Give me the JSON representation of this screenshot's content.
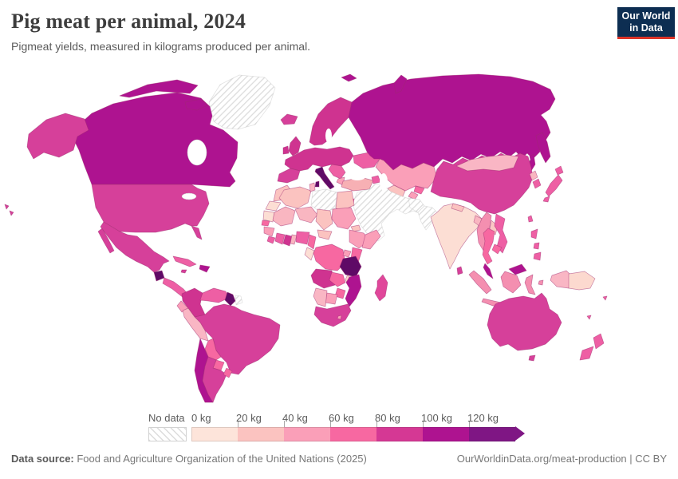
{
  "header": {
    "title": "Pig meat per animal, 2024",
    "subtitle": "Pigmeat yields, measured in kilograms produced per animal.",
    "logo": {
      "line1": "Our World",
      "line2": "in Data",
      "bg": "#0d2e52",
      "accent": "#dc3428"
    }
  },
  "legend": {
    "no_data_label": "No data",
    "tick_labels": [
      "0 kg",
      "20 kg",
      "40 kg",
      "60 kg",
      "80 kg",
      "100 kg",
      "120 kg"
    ],
    "colors": [
      "#fde4da",
      "#fbc3c0",
      "#fa9fb8",
      "#f768a1",
      "#d53894",
      "#ae1390",
      "#7f1684"
    ]
  },
  "footer": {
    "source_label": "Data source:",
    "source_text": " Food and Agriculture Organization of the United Nations (2025)",
    "credit": "OurWorldinData.org/meat-production | CC BY"
  },
  "chart_data": {
    "type": "choropleth",
    "title": "Pig meat per animal, 2024",
    "unit": "kg",
    "bins": [
      {
        "range": "0-20 kg",
        "color": "#fde4da"
      },
      {
        "range": "20-40 kg",
        "color": "#fbc3c0"
      },
      {
        "range": "40-60 kg",
        "color": "#fa9fb8"
      },
      {
        "range": "60-80 kg",
        "color": "#f768a1"
      },
      {
        "range": "80-100 kg",
        "color": "#d53894"
      },
      {
        "range": "100-120 kg",
        "color": "#ae1390"
      },
      {
        "range": "120+ kg",
        "color": "#7f1684"
      },
      {
        "range": "No data",
        "color": "hatch"
      }
    ],
    "regions": [
      {
        "id": "greenland",
        "label": "Greenland",
        "bin": "No data",
        "color": "hatch"
      },
      {
        "id": "canada",
        "label": "Canada",
        "bin": "100-120 kg",
        "color": "#ae1390"
      },
      {
        "id": "usa",
        "label": "United States",
        "bin": "80-100 kg",
        "color": "#d6409a"
      },
      {
        "id": "mexico",
        "label": "Mexico",
        "bin": "80-100 kg",
        "color": "#d6409a"
      },
      {
        "id": "guatemala",
        "label": "Guatemala",
        "bin": "120+ kg",
        "color": "#5f0a66"
      },
      {
        "id": "central-america",
        "label": "Central America",
        "bin": "60-80 kg",
        "color": "#ee5fa4"
      },
      {
        "id": "cuba",
        "label": "Cuba",
        "bin": "60-80 kg",
        "color": "#ee5fa4"
      },
      {
        "id": "hispaniola",
        "label": "Dominican Republic / Haiti",
        "bin": "100-120 kg",
        "color": "#ae1390"
      },
      {
        "id": "jamaica",
        "label": "Jamaica",
        "bin": "80-100 kg",
        "color": "#d6409a"
      },
      {
        "id": "brazil",
        "label": "Brazil",
        "bin": "80-100 kg",
        "color": "#d6409a"
      },
      {
        "id": "colombia",
        "label": "Colombia",
        "bin": "80-100 kg",
        "color": "#cf3390"
      },
      {
        "id": "venezuela",
        "label": "Venezuela",
        "bin": "60-80 kg",
        "color": "#ee5fa4"
      },
      {
        "id": "guyana",
        "label": "Guyana",
        "bin": "120+ kg",
        "color": "#5f0a66"
      },
      {
        "id": "suriname",
        "label": "Suriname",
        "bin": "No data",
        "color": "hatch"
      },
      {
        "id": "ecuador",
        "label": "Ecuador",
        "bin": "40-60 kg",
        "color": "#fa9fb8"
      },
      {
        "id": "peru",
        "label": "Peru",
        "bin": "40-60 kg",
        "color": "#f9b6c4"
      },
      {
        "id": "bolivia",
        "label": "Bolivia",
        "bin": "60-80 kg",
        "color": "#f768a1"
      },
      {
        "id": "paraguay",
        "label": "Paraguay",
        "bin": "60-80 kg",
        "color": "#f768a1"
      },
      {
        "id": "chile",
        "label": "Chile",
        "bin": "100-120 kg",
        "color": "#ae1390"
      },
      {
        "id": "argentina",
        "label": "Argentina",
        "bin": "80-100 kg",
        "color": "#d6409a"
      },
      {
        "id": "uruguay",
        "label": "Uruguay",
        "bin": "60-80 kg",
        "color": "#f768a1"
      },
      {
        "id": "iceland",
        "label": "Iceland",
        "bin": "80-100 kg",
        "color": "#d6409a"
      },
      {
        "id": "uk",
        "label": "United Kingdom",
        "bin": "80-100 kg",
        "color": "#cf3390"
      },
      {
        "id": "ireland",
        "label": "Ireland",
        "bin": "80-100 kg",
        "color": "#cf3390"
      },
      {
        "id": "scandinavia",
        "label": "Norway / Sweden / Finland",
        "bin": "80-100 kg",
        "color": "#cf3390"
      },
      {
        "id": "svalbard",
        "label": "Svalbard",
        "bin": "100-120 kg",
        "color": "#ae1390"
      },
      {
        "id": "europe-core",
        "label": "Western & Central Europe",
        "bin": "80-100 kg",
        "color": "#cf3390"
      },
      {
        "id": "iberia",
        "label": "Spain / Portugal",
        "bin": "80-100 kg",
        "color": "#d6409a"
      },
      {
        "id": "italy",
        "label": "Italy",
        "bin": "120+ kg",
        "color": "#5f0a66"
      },
      {
        "id": "balkans",
        "label": "Balkans",
        "bin": "60-80 kg",
        "color": "#ee5fa4"
      },
      {
        "id": "greece",
        "label": "Greece",
        "bin": "40-60 kg",
        "color": "#fa9fb8"
      },
      {
        "id": "ukraine",
        "label": "Ukraine",
        "bin": "60-80 kg",
        "color": "#ee5fa4"
      },
      {
        "id": "turkey",
        "label": "Turkey",
        "bin": "20-40 kg",
        "color": "#f7b0b4"
      },
      {
        "id": "caucasus",
        "label": "Caucasus",
        "bin": "60-80 kg",
        "color": "#ee5fa4"
      },
      {
        "id": "russia",
        "label": "Russia",
        "bin": "100-120 kg",
        "color": "#ae1390"
      },
      {
        "id": "kazakhstan",
        "label": "Kazakhstan",
        "bin": "40-60 kg",
        "color": "#fa9fb8"
      },
      {
        "id": "uzbekistan",
        "label": "Uzbekistan",
        "bin": "20-40 kg",
        "color": "#fbc3c0"
      },
      {
        "id": "turkmenistan",
        "label": "Turkmenistan",
        "bin": "No data",
        "color": "hatch"
      },
      {
        "id": "kyrgyzstan",
        "label": "Kyrgyzstan",
        "bin": "60-80 kg",
        "color": "#f768a1"
      },
      {
        "id": "tajikistan",
        "label": "Tajikistan",
        "bin": "40-60 kg",
        "color": "#fa9fb8"
      },
      {
        "id": "middle-east",
        "label": "Middle East (Saudi Arabia, Iran, Iraq, Yemen, Oman, Syria)",
        "bin": "No data",
        "color": "hatch"
      },
      {
        "id": "israel",
        "label": "Israel",
        "bin": "60-80 kg",
        "color": "#f768a1"
      },
      {
        "id": "afghanistan",
        "label": "Afghanistan",
        "bin": "No data",
        "color": "hatch"
      },
      {
        "id": "pakistan",
        "label": "Pakistan",
        "bin": "No data",
        "color": "hatch"
      },
      {
        "id": "india",
        "label": "India",
        "bin": "0-20 kg",
        "color": "#fcded4"
      },
      {
        "id": "nepal",
        "label": "Nepal",
        "bin": "20-40 kg",
        "color": "#fbc3c0"
      },
      {
        "id": "bangladesh",
        "label": "Bangladesh",
        "bin": "40-60 kg",
        "color": "#f9b6c1"
      },
      {
        "id": "sri-lanka",
        "label": "Sri Lanka",
        "bin": "80-100 kg",
        "color": "#d6409a"
      },
      {
        "id": "china",
        "label": "China",
        "bin": "80-100 kg",
        "color": "#d6409a"
      },
      {
        "id": "mongolia",
        "label": "Mongolia",
        "bin": "40-60 kg",
        "color": "#f9b6c4"
      },
      {
        "id": "north-korea",
        "label": "North Korea",
        "bin": "40-60 kg",
        "color": "#f9b6c1"
      },
      {
        "id": "south-korea",
        "label": "South Korea",
        "bin": "60-80 kg",
        "color": "#ee5fa4"
      },
      {
        "id": "japan",
        "label": "Japan",
        "bin": "60-80 kg",
        "color": "#ee5fa4"
      },
      {
        "id": "taiwan",
        "label": "Taiwan",
        "bin": "60-80 kg",
        "color": "#ee5fa4"
      },
      {
        "id": "myanmar",
        "label": "Myanmar",
        "bin": "60-80 kg",
        "color": "#f48fb0"
      },
      {
        "id": "laos",
        "label": "Laos",
        "bin": "20-40 kg",
        "color": "#fbc7c4"
      },
      {
        "id": "thailand",
        "label": "Thailand",
        "bin": "60-80 kg",
        "color": "#f768a1"
      },
      {
        "id": "vietnam",
        "label": "Vietnam",
        "bin": "60-80 kg",
        "color": "#ee5fa4"
      },
      {
        "id": "cambodia",
        "label": "Cambodia",
        "bin": "60-80 kg",
        "color": "#f768a1"
      },
      {
        "id": "malaysia",
        "label": "Malaysia",
        "bin": "100-120 kg",
        "color": "#ae1390"
      },
      {
        "id": "indonesia",
        "label": "Indonesia",
        "bin": "60-80 kg",
        "color": "#f48fb0"
      },
      {
        "id": "philippines",
        "label": "Philippines",
        "bin": "60-80 kg",
        "color": "#ee5fa4"
      },
      {
        "id": "papua-indonesia",
        "label": "Indonesia (Papua)",
        "bin": "40-60 kg",
        "color": "#f9b6c4"
      },
      {
        "id": "png",
        "label": "Papua New Guinea",
        "bin": "0-20 kg",
        "color": "#fcd9cf"
      },
      {
        "id": "australia",
        "label": "Australia",
        "bin": "80-100 kg",
        "color": "#d6409a"
      },
      {
        "id": "new-zealand",
        "label": "New Zealand",
        "bin": "60-80 kg",
        "color": "#ee5fa4"
      },
      {
        "id": "fiji",
        "label": "Fiji",
        "bin": "60-80 kg",
        "color": "#ee5fa4"
      },
      {
        "id": "new-caledonia",
        "label": "New Caledonia",
        "bin": "60-80 kg",
        "color": "#ee5fa4"
      },
      {
        "id": "morocco",
        "label": "Morocco",
        "bin": "20-40 kg",
        "color": "#fbc3c0"
      },
      {
        "id": "w-sahara",
        "label": "Western Sahara",
        "bin": "0-20 kg",
        "color": "#fcded4"
      },
      {
        "id": "algeria",
        "label": "Algeria",
        "bin": "20-40 kg",
        "color": "#fbc3c0"
      },
      {
        "id": "tunisia",
        "label": "Tunisia",
        "bin": "40-60 kg",
        "color": "#f9b6c1"
      },
      {
        "id": "libya",
        "label": "Libya",
        "bin": "No data",
        "color": "hatch"
      },
      {
        "id": "egypt",
        "label": "Egypt",
        "bin": "20-40 kg",
        "color": "#fbc3c0"
      },
      {
        "id": "mauritania",
        "label": "Mauritania",
        "bin": "0-20 kg",
        "color": "#fcded4"
      },
      {
        "id": "mali",
        "label": "Mali",
        "bin": "40-60 kg",
        "color": "#f9b6c1"
      },
      {
        "id": "niger",
        "label": "Niger",
        "bin": "40-60 kg",
        "color": "#f9b6c1"
      },
      {
        "id": "chad",
        "label": "Chad",
        "bin": "20-40 kg",
        "color": "#fbc3c0"
      },
      {
        "id": "sudan",
        "label": "Sudan",
        "bin": "40-60 kg",
        "color": "#fa9fb8"
      },
      {
        "id": "eritrea",
        "label": "Eritrea",
        "bin": "20-40 kg",
        "color": "#fbc3c0"
      },
      {
        "id": "ethiopia",
        "label": "Ethiopia",
        "bin": "40-60 kg",
        "color": "#fa9fb8"
      },
      {
        "id": "somalia",
        "label": "Somalia",
        "bin": "40-60 kg",
        "color": "#fa9fb8"
      },
      {
        "id": "senegal",
        "label": "Senegal",
        "bin": "60-80 kg",
        "color": "#f768a1"
      },
      {
        "id": "guinea",
        "label": "Guinea",
        "bin": "40-60 kg",
        "color": "#fa9fb8"
      },
      {
        "id": "sierra-liberia",
        "label": "Sierra Leone / Liberia",
        "bin": "60-80 kg",
        "color": "#ee5fa4"
      },
      {
        "id": "cote-divoire",
        "label": "Cote d'Ivoire",
        "bin": "60-80 kg",
        "color": "#ee5fa4"
      },
      {
        "id": "ghana",
        "label": "Ghana",
        "bin": "80-100 kg",
        "color": "#cf3390"
      },
      {
        "id": "togo-benin",
        "label": "Togo / Benin",
        "bin": "40-60 kg",
        "color": "#f9b6c1"
      },
      {
        "id": "nigeria",
        "label": "Nigeria",
        "bin": "60-80 kg",
        "color": "#ee5fa4"
      },
      {
        "id": "cameroon",
        "label": "Cameroon",
        "bin": "60-80 kg",
        "color": "#f768a1"
      },
      {
        "id": "car",
        "label": "Central African Republic",
        "bin": "20-40 kg",
        "color": "#fbc3c0"
      },
      {
        "id": "gabon-congo",
        "label": "Gabon / Congo",
        "bin": "0-20 kg",
        "color": "#fcded4"
      },
      {
        "id": "drc",
        "label": "Democratic Republic of Congo",
        "bin": "60-80 kg",
        "color": "#f768a1"
      },
      {
        "id": "uganda",
        "label": "Uganda",
        "bin": "40-60 kg",
        "color": "#fa9fb8"
      },
      {
        "id": "kenya",
        "label": "Kenya",
        "bin": "60-80 kg",
        "color": "#f768a1"
      },
      {
        "id": "tanzania",
        "label": "Tanzania",
        "bin": "120+ kg",
        "color": "#5f0a66"
      },
      {
        "id": "angola",
        "label": "Angola",
        "bin": "80-100 kg",
        "color": "#cf3390"
      },
      {
        "id": "zambia",
        "label": "Zambia",
        "bin": "60-80 kg",
        "color": "#f768a1"
      },
      {
        "id": "malawi",
        "label": "Malawi",
        "bin": "0-20 kg",
        "color": "#fcd4ca"
      },
      {
        "id": "mozambique",
        "label": "Mozambique",
        "bin": "100-120 kg",
        "color": "#ae1390"
      },
      {
        "id": "zimbabwe",
        "label": "Zimbabwe",
        "bin": "60-80 kg",
        "color": "#f768a1"
      },
      {
        "id": "botswana",
        "label": "Botswana",
        "bin": "40-60 kg",
        "color": "#fa9fb8"
      },
      {
        "id": "namibia",
        "label": "Namibia",
        "bin": "40-60 kg",
        "color": "#f9b6c4"
      },
      {
        "id": "south-africa",
        "label": "South Africa",
        "bin": "80-100 kg",
        "color": "#d6409a"
      },
      {
        "id": "lesotho",
        "label": "Lesotho",
        "bin": "40-60 kg",
        "color": "#fa9fb8"
      },
      {
        "id": "madagascar",
        "label": "Madagascar",
        "bin": "80-100 kg",
        "color": "#e0479a"
      }
    ]
  }
}
